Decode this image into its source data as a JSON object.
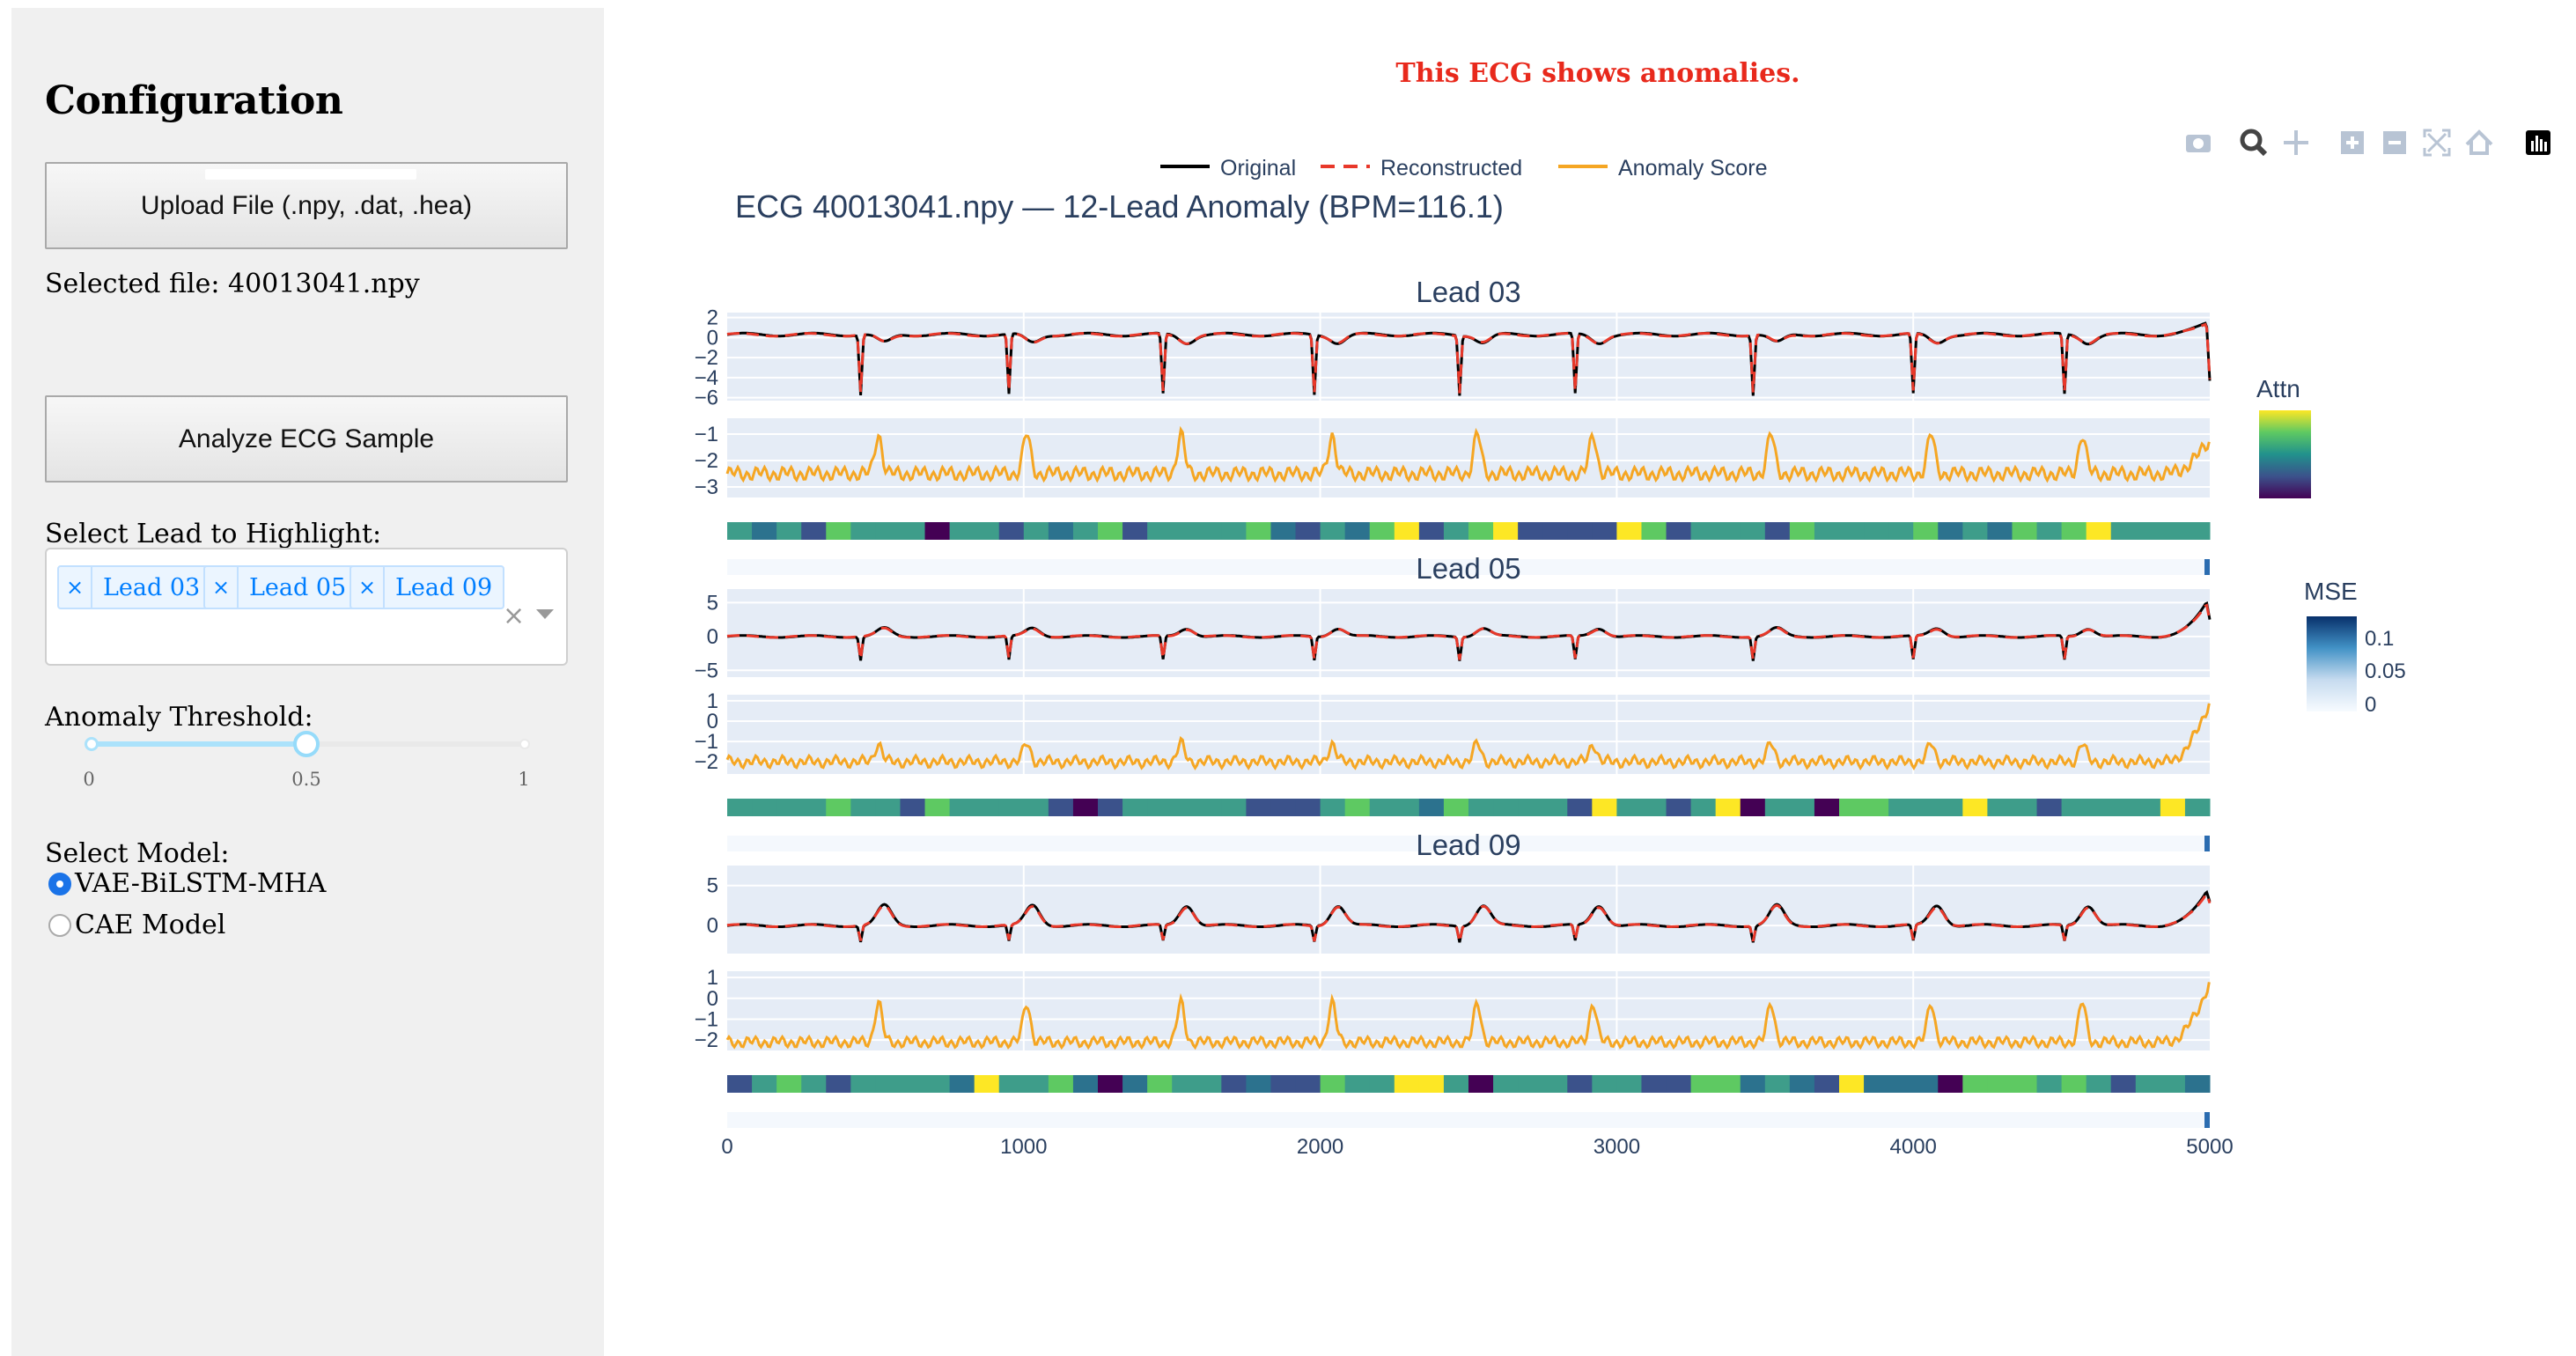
{
  "sidebar": {
    "title": "Configuration",
    "upload_label": "Upload File (.npy, .dat, .hea)",
    "selected_file": "Selected file: 40013041.npy",
    "analyze_label": "Analyze ECG Sample",
    "lead_label": "Select Lead to Highlight:",
    "selected_leads": [
      "Lead 03",
      "Lead 05",
      "Lead 09"
    ],
    "chip_x": "×",
    "clear_x": "×",
    "threshold_label": "Anomaly Threshold:",
    "threshold_value": 0.5,
    "threshold_ticks": [
      "0",
      "0.5",
      "1"
    ],
    "model_label": "Select Model:",
    "models": [
      {
        "label": "VAE-BiLSTM-MHA",
        "selected": true
      },
      {
        "label": "CAE Model",
        "selected": false
      }
    ]
  },
  "status": {
    "message": "This ECG shows anomalies.",
    "color": "#e8291c"
  },
  "toolbar": {
    "icons": [
      "camera-icon",
      "zoom-icon",
      "pan-icon",
      "zoom-in-icon",
      "zoom-out-icon",
      "autoscale-icon",
      "reset-axes-icon",
      "plotly-logo-icon"
    ]
  },
  "legend": [
    {
      "name": "Original",
      "color": "#000000",
      "dash": false
    },
    {
      "name": "Reconstructed",
      "color": "#e8382a",
      "dash": true
    },
    {
      "name": "Anomaly Score",
      "color": "#f5a623",
      "dash": false
    }
  ],
  "chart_data": {
    "type": "line",
    "title": "ECG 40013041.npy — 12-Lead Anomaly (BPM=116.1)",
    "x_ticks": [
      "0",
      "1000",
      "2000",
      "3000",
      "4000",
      "5000"
    ],
    "xlim": [
      0,
      5000
    ],
    "grid": true,
    "beat_x": [
      450,
      950,
      1470,
      1980,
      2470,
      2860,
      3460,
      4000,
      4510,
      5000
    ],
    "leads": [
      {
        "name": "Lead 03",
        "ecg_ticks": [
          "2",
          "0",
          "−2",
          "−4",
          "−6"
        ],
        "ecg_range": [
          -6.3,
          2.5
        ],
        "ecg_baseline": 0.3,
        "ecg_spike": -6,
        "ecg_bump": -0.8,
        "ecg_end": 1.7,
        "score_ticks": [
          "−1",
          "−2",
          "−3"
        ],
        "score_range": [
          -3.4,
          -0.4
        ],
        "score_baseline": -2.5,
        "score_peak": -1,
        "score_end": -1.2
      },
      {
        "name": "Lead 05",
        "ecg_ticks": [
          "5",
          "0",
          "−5"
        ],
        "ecg_range": [
          -6,
          7
        ],
        "ecg_baseline": 0,
        "ecg_spike": -3.5,
        "ecg_bump": 1.2,
        "ecg_end": 6,
        "score_ticks": [
          "1",
          "0",
          "−1",
          "−2"
        ],
        "score_range": [
          -2.6,
          1.3
        ],
        "score_baseline": -2,
        "score_peak": -1.1,
        "score_end": 1
      },
      {
        "name": "Lead 09",
        "ecg_ticks": [
          "5",
          "0"
        ],
        "ecg_range": [
          -3.5,
          7.5
        ],
        "ecg_baseline": 0,
        "ecg_spike": -2,
        "ecg_bump": 2.5,
        "ecg_end": 5,
        "score_ticks": [
          "1",
          "0",
          "−1",
          "−2"
        ],
        "score_range": [
          -2.5,
          1.3
        ],
        "score_baseline": -2.1,
        "score_peak": -0.2,
        "score_end": 0.8
      }
    ],
    "colorbars": [
      {
        "title": "Attn",
        "colorscale": "viridis"
      },
      {
        "title": "MSE",
        "colorscale": "blues",
        "ticks": [
          "0.1",
          "0.05",
          "0"
        ]
      }
    ]
  }
}
